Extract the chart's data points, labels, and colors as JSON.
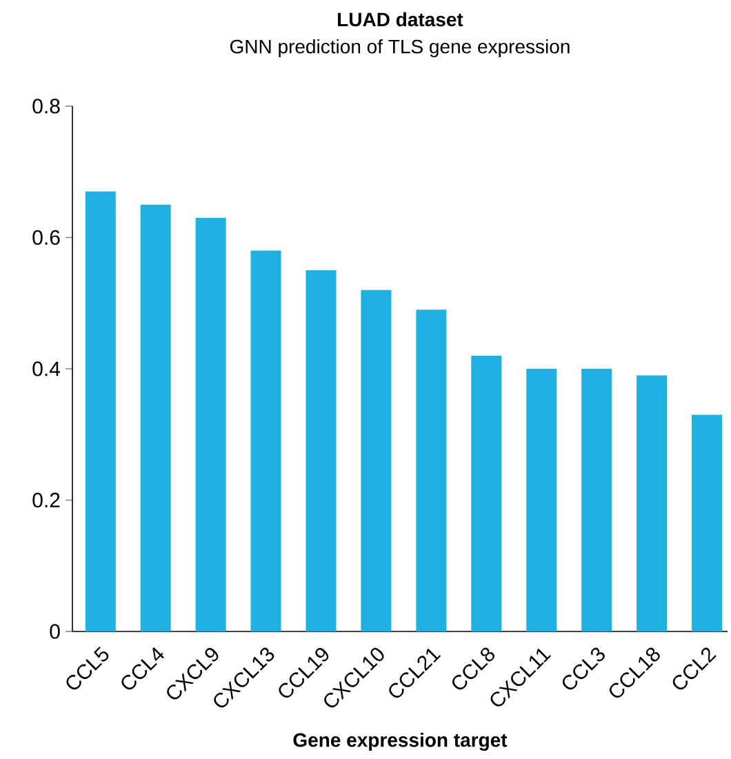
{
  "chart_data": {
    "type": "bar",
    "title": "LUAD dataset",
    "subtitle": "GNN prediction of TLS gene expression",
    "xlabel": "Gene expression target",
    "categories": [
      "CCL5",
      "CCL4",
      "CXCL9",
      "CXCL13",
      "CCL19",
      "CXCL10",
      "CCL21",
      "CCL8",
      "CXCL11",
      "CCL3",
      "CCL18",
      "CCL2"
    ],
    "values": [
      0.67,
      0.65,
      0.63,
      0.58,
      0.55,
      0.52,
      0.49,
      0.42,
      0.4,
      0.4,
      0.39,
      0.33
    ],
    "color": "#1fb1e3",
    "ylim": [
      0,
      0.8
    ],
    "yticks": [
      0,
      0.2,
      0.4,
      0.6,
      0.8
    ],
    "grid": false
  }
}
